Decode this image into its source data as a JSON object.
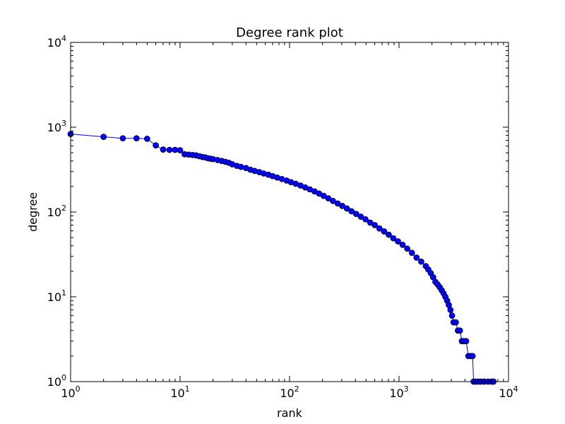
{
  "chart_data": {
    "type": "line",
    "title": "Degree rank plot",
    "xlabel": "rank",
    "ylabel": "degree",
    "xscale": "log",
    "yscale": "log",
    "xlim": [
      1,
      10000
    ],
    "ylim": [
      1,
      10000
    ],
    "xticks": [
      {
        "value": 1,
        "base": "10",
        "exp": "0"
      },
      {
        "value": 10,
        "base": "10",
        "exp": "1"
      },
      {
        "value": 100,
        "base": "10",
        "exp": "2"
      },
      {
        "value": 1000,
        "base": "10",
        "exp": "3"
      },
      {
        "value": 10000,
        "base": "10",
        "exp": "4"
      }
    ],
    "yticks": [
      {
        "value": 1,
        "base": "10",
        "exp": "0"
      },
      {
        "value": 10,
        "base": "10",
        "exp": "1"
      },
      {
        "value": 100,
        "base": "10",
        "exp": "2"
      },
      {
        "value": 1000,
        "base": "10",
        "exp": "3"
      },
      {
        "value": 10000,
        "base": "10",
        "exp": "4"
      }
    ],
    "grid": false,
    "series": [
      {
        "color": "#0000ff",
        "marker": "circle",
        "x": [
          1,
          2,
          3,
          4,
          5,
          6,
          7,
          8,
          9,
          10,
          11,
          12,
          13,
          14,
          15,
          16,
          17,
          18,
          19,
          20,
          22,
          24,
          26,
          28,
          30,
          33,
          36,
          40,
          44,
          48,
          53,
          58,
          64,
          70,
          77,
          85,
          94,
          103,
          114,
          126,
          139,
          153,
          169,
          186,
          205,
          226,
          249,
          275,
          303,
          334,
          368,
          406,
          448,
          494,
          545,
          601,
          662,
          730,
          805,
          887,
          978,
          1078,
          1189,
          1311,
          1445,
          1593,
          1757,
          1850,
          1950,
          2050,
          2150,
          2250,
          2350,
          2450,
          2550,
          2650,
          2750,
          2850,
          2950,
          3050,
          3150,
          3300,
          3450,
          3600,
          3750,
          3900,
          4100,
          4300,
          4500,
          4700,
          4800,
          5000,
          5300,
          5600,
          6000,
          6500,
          7000,
          7300
        ],
        "y": [
          830,
          770,
          740,
          740,
          730,
          610,
          545,
          540,
          540,
          535,
          480,
          475,
          470,
          465,
          455,
          445,
          440,
          430,
          425,
          420,
          410,
          400,
          390,
          380,
          365,
          350,
          340,
          330,
          315,
          305,
          295,
          285,
          275,
          265,
          255,
          245,
          235,
          225,
          215,
          205,
          195,
          185,
          175,
          165,
          155,
          145,
          135,
          126,
          118,
          110,
          102,
          95,
          88,
          82,
          75,
          70,
          64,
          59,
          54,
          49,
          45,
          41,
          37,
          33,
          29,
          26,
          23,
          21,
          19,
          17,
          15,
          14,
          13,
          12,
          11,
          10,
          9,
          8,
          7,
          6,
          5,
          5,
          4,
          4,
          3,
          3,
          3,
          2,
          2,
          2,
          1,
          1,
          1,
          1,
          1,
          1,
          1,
          1
        ]
      }
    ]
  }
}
